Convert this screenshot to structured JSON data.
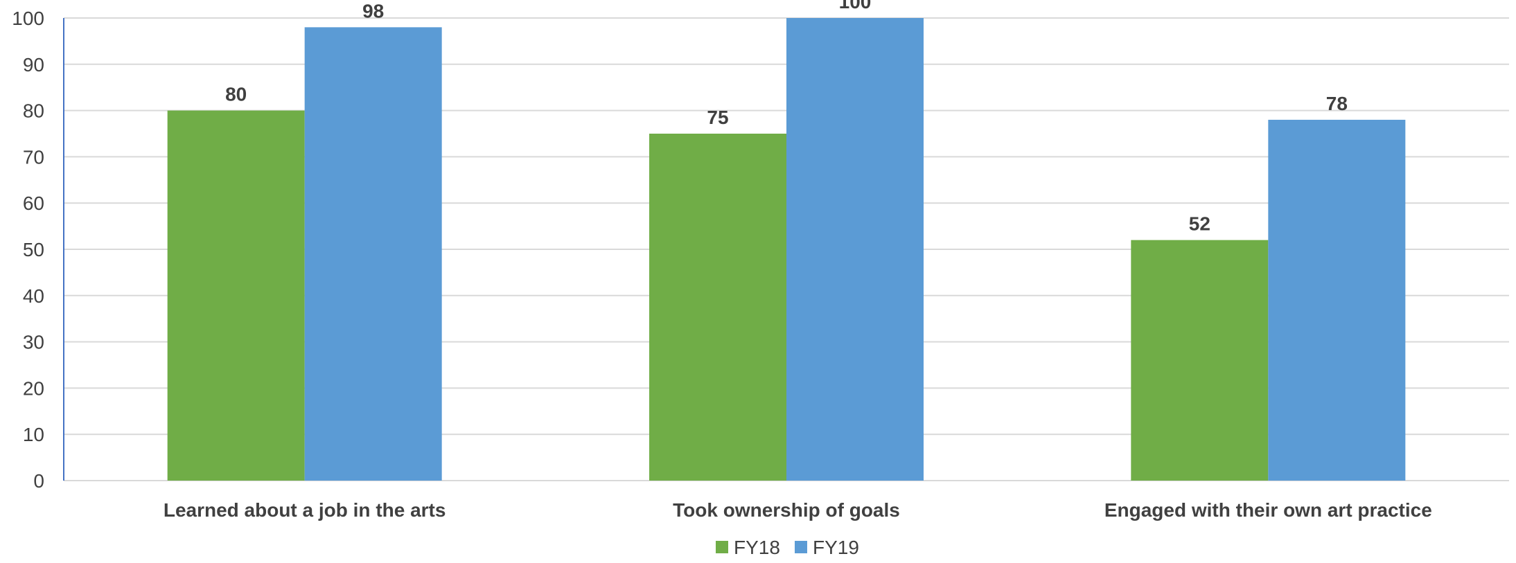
{
  "chart_data": {
    "type": "bar",
    "title": "",
    "xlabel": "",
    "ylabel": "",
    "categories": [
      "Learned about a job in the arts",
      "Took ownership of goals",
      "Engaged with their own art practice"
    ],
    "series": [
      {
        "name": "FY18",
        "values": [
          80,
          75,
          52
        ],
        "color": "#70ad47"
      },
      {
        "name": "FY19",
        "values": [
          98,
          100,
          78
        ],
        "color": "#5b9bd5"
      }
    ],
    "ylim": [
      0,
      100
    ],
    "yticks": [
      0,
      10,
      20,
      30,
      40,
      50,
      60,
      70,
      80,
      90,
      100
    ],
    "grid": true,
    "legend_position": "bottom-center",
    "data_labels": true
  }
}
